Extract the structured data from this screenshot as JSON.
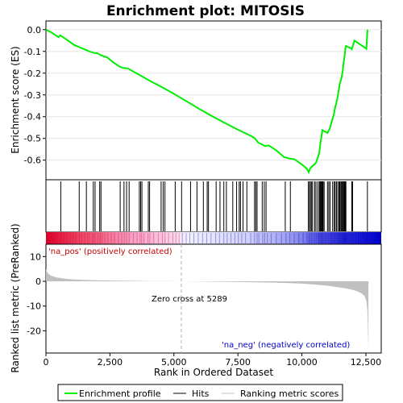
{
  "chart_data": {
    "type": "line",
    "title": "Enrichment plot: MITOSIS",
    "xlabel": "Rank in Ordered Dataset",
    "ylabel_top": "Enrichment score (ES)",
    "ylabel_bottom": "Ranked list metric (PreRanked)",
    "xlim": [
      0,
      13100
    ],
    "x_ticks": [
      0,
      2500,
      5000,
      7500,
      10000,
      12500
    ],
    "x_tick_labels": [
      "0",
      "2,500",
      "5,000",
      "7,500",
      "10,000",
      "12,500"
    ],
    "es_ylim": [
      -0.69,
      0.04
    ],
    "es_ticks": [
      0.0,
      -0.1,
      -0.2,
      -0.3,
      -0.4,
      -0.5,
      -0.6
    ],
    "es_tick_labels": [
      "0.0",
      "-0.1",
      "-0.2",
      "-0.3",
      "-0.4",
      "-0.5",
      "-0.6"
    ],
    "metric_ylim": [
      -29,
      15
    ],
    "metric_ticks": [
      10,
      0,
      -10,
      -20
    ],
    "metric_tick_labels": [
      "10",
      "0",
      "-10",
      "-20"
    ],
    "zero_cross_rank": 5289,
    "zero_cross_label": "Zero cross at 5289",
    "pos_label": "'na_pos' (positively correlated)",
    "neg_label": "'na_neg' (negatively correlated)",
    "legend": [
      "Enrichment profile",
      "Hits",
      "Ranking metric scores"
    ],
    "colors": {
      "es_line": "#00ee00",
      "hits": "#000000",
      "metric_fill": "#c0c0c0",
      "pos_label": "#cc0000",
      "neg_label": "#0000cc",
      "zero_line": "#b0b0b0"
    },
    "enrichment_profile": {
      "x": [
        0,
        200,
        500,
        560,
        800,
        1100,
        1300,
        1500,
        1700,
        1900,
        2000,
        2150,
        2400,
        2600,
        2850,
        3000,
        3200,
        3500,
        3800,
        4100,
        4500,
        5000,
        5500,
        6000,
        6500,
        7000,
        7500,
        8000,
        8150,
        8300,
        8450,
        8550,
        8700,
        9000,
        9300,
        9500,
        9700,
        10000,
        10200,
        10270,
        10320,
        10400,
        10470,
        10550,
        10620,
        10680,
        10720,
        10760,
        10800,
        10900,
        11000,
        11100,
        11150,
        11250,
        11300,
        11380,
        11430,
        11480,
        11550,
        11600,
        11620,
        11650,
        11680,
        11700,
        11720,
        11900,
        11950,
        12050,
        12300,
        12520,
        12560
      ],
      "y": [
        0.0,
        -0.012,
        -0.035,
        -0.026,
        -0.045,
        -0.07,
        -0.08,
        -0.09,
        -0.1,
        -0.108,
        -0.108,
        -0.118,
        -0.128,
        -0.148,
        -0.168,
        -0.176,
        -0.178,
        -0.198,
        -0.218,
        -0.238,
        -0.262,
        -0.295,
        -0.33,
        -0.365,
        -0.398,
        -0.43,
        -0.46,
        -0.488,
        -0.498,
        -0.52,
        -0.528,
        -0.535,
        -0.532,
        -0.555,
        -0.585,
        -0.592,
        -0.595,
        -0.62,
        -0.64,
        -0.655,
        -0.638,
        -0.628,
        -0.622,
        -0.612,
        -0.59,
        -0.565,
        -0.525,
        -0.495,
        -0.462,
        -0.468,
        -0.475,
        -0.452,
        -0.428,
        -0.388,
        -0.358,
        -0.32,
        -0.285,
        -0.248,
        -0.22,
        -0.185,
        -0.16,
        -0.135,
        -0.11,
        -0.085,
        -0.075,
        -0.085,
        -0.09,
        -0.05,
        -0.07,
        -0.088,
        0.0
      ]
    },
    "hit_ranks": [
      40,
      80,
      130,
      180,
      240,
      320,
      420,
      580,
      700,
      820,
      950,
      1060,
      1170,
      1300,
      1400,
      1520,
      1630,
      1700,
      1810,
      1870,
      1920,
      2010,
      2080,
      2130,
      2200,
      2300,
      2420,
      2550,
      2680,
      2830,
      2960,
      3060,
      3150,
      3250,
      3420,
      3560,
      3680,
      3740,
      3830,
      3990,
      4060,
      4210,
      4390,
      4550,
      4650,
      4790,
      4960,
      5080,
      5200,
      5330,
      5480,
      5620,
      5780,
      5950,
      6120,
      6280,
      6450,
      6630,
      6780,
      6950,
      7080,
      7230,
      7380,
      7520,
      7650,
      7800,
      8000,
      8150,
      8250,
      8320,
      8470,
      8550,
      8650,
      8800,
      9000,
      9200,
      9380,
      9530,
      9700,
      9880,
      10050,
      10200,
      10270,
      10320,
      10370,
      10430,
      10500,
      10560,
      10620,
      10660,
      10700,
      10730,
      10760,
      10790,
      10820,
      10860,
      10900,
      10940,
      10990,
      11040,
      11090,
      11130,
      11170,
      11210,
      11250,
      11290,
      11330,
      11370,
      11410,
      11440,
      11470,
      11500,
      11530,
      11560,
      11590,
      11610,
      11630,
      11650,
      11670,
      11690,
      11710,
      11730,
      11760,
      11800,
      11850,
      11900,
      11960,
      12020,
      12100,
      12200,
      12300,
      12400,
      12500,
      12560
    ],
    "hits_drawn_as_ticks": [
      580,
      1300,
      1580,
      1850,
      1920,
      2100,
      2150,
      2900,
      3050,
      3150,
      3250,
      3650,
      3700,
      3750,
      4000,
      4050,
      4500,
      4580,
      4650,
      5050,
      5300,
      5650,
      5900,
      6150,
      6300,
      6350,
      6650,
      6800,
      6950,
      7050,
      7300,
      7450,
      7550,
      7600,
      7700,
      7850,
      8150,
      8200,
      8250,
      8450,
      8530,
      8600,
      9350,
      9550,
      10250,
      10300,
      10330,
      10380,
      10420,
      10500,
      10550,
      10620,
      10680,
      10700,
      10720,
      10750,
      10780,
      10800,
      10830,
      10870,
      11000,
      11050,
      11100,
      11200,
      11260,
      11300,
      11350,
      11400,
      11450,
      11480,
      11520,
      11550,
      11580,
      11610,
      11640,
      11660,
      11680,
      11700,
      11720,
      11950,
      11980,
      12560
    ],
    "ranking_metric": {
      "x": [
        0,
        30,
        100,
        200,
        400,
        700,
        1000,
        1500,
        2000,
        3000,
        4000,
        5000,
        5289,
        6000,
        7000,
        8000,
        9000,
        9500,
        10000,
        10500,
        11000,
        11500,
        11800,
        12000,
        12200,
        12350,
        12450,
        12520,
        12560,
        12600
      ],
      "y": [
        5.0,
        4.0,
        3.0,
        2.3,
        1.6,
        1.1,
        0.8,
        0.55,
        0.4,
        0.25,
        0.12,
        0.03,
        0.0,
        -0.08,
        -0.2,
        -0.35,
        -0.55,
        -0.7,
        -0.95,
        -1.3,
        -1.8,
        -2.5,
        -3.0,
        -3.5,
        -4.2,
        -5.0,
        -6.0,
        -8.0,
        -12.0,
        -28.0
      ]
    }
  }
}
